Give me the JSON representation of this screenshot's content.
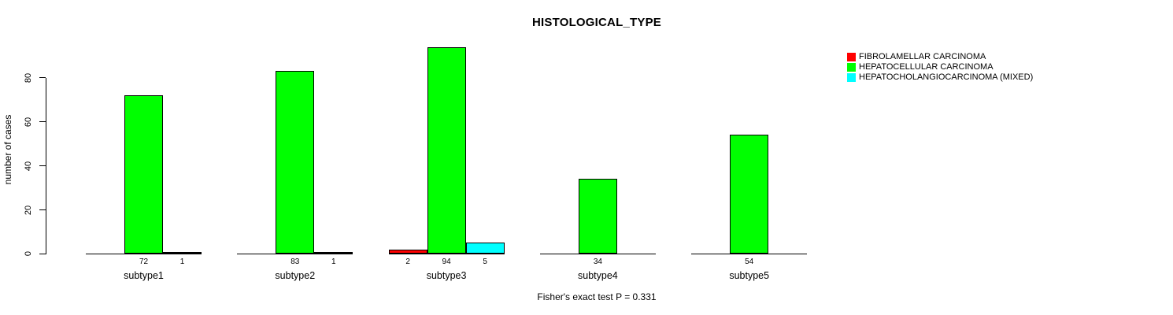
{
  "chart_data": {
    "type": "bar",
    "grouped": true,
    "title": "HISTOLOGICAL_TYPE",
    "xlabel": "",
    "ylabel": "number of cases",
    "yticks": [
      0,
      20,
      40,
      60,
      80
    ],
    "ylim": [
      0,
      94
    ],
    "grid": false,
    "legend_position": "right",
    "bar_value_labels": true,
    "categories": [
      "subtype1",
      "subtype2",
      "subtype3",
      "subtype4",
      "subtype5"
    ],
    "series": [
      {
        "name": "FIBROLAMELLAR CARCINOMA",
        "color": "#FF0000",
        "values": [
          0,
          0,
          2,
          0,
          0
        ]
      },
      {
        "name": "HEPATOCELLULAR CARCINOMA",
        "color": "#00FF00",
        "values": [
          72,
          83,
          94,
          34,
          54
        ]
      },
      {
        "name": "HEPATOCHOLANGIOCARCINOMA (MIXED)",
        "color": "#00FFFF",
        "values": [
          1,
          1,
          5,
          0,
          0
        ]
      }
    ],
    "footnote": "Fisher's exact test P = 0.331"
  },
  "colors": {
    "background": "#ffffff",
    "axis": "#000000",
    "bar_border": "#000000"
  }
}
